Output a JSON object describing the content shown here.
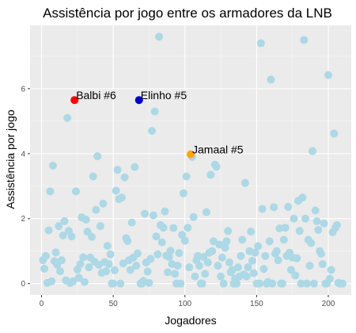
{
  "chart_data": {
    "type": "scatter",
    "title": "Assistência por jogo entre os armadores da LNB",
    "xlabel": "Jogadores",
    "ylabel": "Assistência por jogo",
    "xlim": [
      -8,
      216
    ],
    "ylim": [
      -0.35,
      7.95
    ],
    "x_ticks": [
      0,
      50,
      100,
      150,
      200
    ],
    "y_ticks": [
      0,
      2,
      4,
      6
    ],
    "grid": true,
    "legend": "none",
    "colors": {
      "panel": "#ebebeb",
      "grid_major": "#ffffff",
      "point": "#add8e6",
      "highlight_red": "#ff0000",
      "highlight_blue": "#0000cd",
      "highlight_orange": "#ffa500"
    },
    "highlights": [
      {
        "label": "Balbi #6",
        "x": 23,
        "y": 5.65,
        "color": "#ff0000"
      },
      {
        "label": "Elinho #5",
        "x": 68,
        "y": 5.65,
        "color": "#0000cd"
      },
      {
        "label": "Jamaal #5",
        "x": 104,
        "y": 3.98,
        "color": "#ffa500"
      }
    ],
    "points": [
      [
        1,
        0.72
      ],
      [
        2,
        0.46
      ],
      [
        3,
        0.85
      ],
      [
        4,
        0.02
      ],
      [
        5,
        1.64
      ],
      [
        6,
        2.84
      ],
      [
        7,
        0.07
      ],
      [
        8,
        3.63
      ],
      [
        9,
        0.69
      ],
      [
        10,
        0.96
      ],
      [
        11,
        0.58
      ],
      [
        12,
        1.77
      ],
      [
        13,
        0.38
      ],
      [
        14,
        0.72
      ],
      [
        15,
        1.48
      ],
      [
        16,
        1.92
      ],
      [
        17,
        0.1
      ],
      [
        18,
        5.1
      ],
      [
        19,
        1.62
      ],
      [
        20,
        0.02
      ],
      [
        21,
        1.45
      ],
      [
        22,
        0.07
      ],
      [
        24,
        2.84
      ],
      [
        25,
        0.43
      ],
      [
        26,
        0.18
      ],
      [
        27,
        0.6
      ],
      [
        28,
        2.04
      ],
      [
        29,
        0.81
      ],
      [
        30,
        0.05
      ],
      [
        31,
        1.97
      ],
      [
        32,
        1.6
      ],
      [
        33,
        0.5
      ],
      [
        34,
        0.8
      ],
      [
        35,
        1.44
      ],
      [
        36,
        3.3
      ],
      [
        37,
        0.67
      ],
      [
        38,
        2.27
      ],
      [
        39,
        3.92
      ],
      [
        40,
        0.58
      ],
      [
        41,
        1.77
      ],
      [
        42,
        0.33
      ],
      [
        43,
        2.46
      ],
      [
        44,
        0.66
      ],
      [
        45,
        0.38
      ],
      [
        46,
        1.16
      ],
      [
        47,
        0.6
      ],
      [
        48,
        0.9
      ],
      [
        49,
        0.0
      ],
      [
        50,
        0.0
      ],
      [
        51,
        0.41
      ],
      [
        52,
        2.86
      ],
      [
        53,
        3.5
      ],
      [
        54,
        2.6
      ],
      [
        55,
        0.0
      ],
      [
        56,
        2.65
      ],
      [
        57,
        0.62
      ],
      [
        58,
        3.27
      ],
      [
        59,
        1.4
      ],
      [
        60,
        1.31
      ],
      [
        61,
        0.72
      ],
      [
        62,
        0.42
      ],
      [
        63,
        1.88
      ],
      [
        64,
        0.8
      ],
      [
        65,
        3.59
      ],
      [
        66,
        0.55
      ],
      [
        67,
        0.93
      ],
      [
        69,
        0.0
      ],
      [
        70,
        0.0
      ],
      [
        71,
        0.08
      ],
      [
        72,
        2.15
      ],
      [
        73,
        0.65
      ],
      [
        74,
        0.37
      ],
      [
        75,
        0.02
      ],
      [
        76,
        0.76
      ],
      [
        77,
        4.7
      ],
      [
        78,
        2.1
      ],
      [
        79,
        5.3
      ],
      [
        80,
        1.45
      ],
      [
        81,
        0.9
      ],
      [
        82,
        7.6
      ],
      [
        83,
        1.8
      ],
      [
        84,
        1.27
      ],
      [
        85,
        1.72
      ],
      [
        86,
        2.22
      ],
      [
        87,
        0.86
      ],
      [
        88,
        0.35
      ],
      [
        89,
        0.82
      ],
      [
        90,
        1.01
      ],
      [
        91,
        0.6
      ],
      [
        92,
        1.71
      ],
      [
        93,
        0.3
      ],
      [
        94,
        0.0
      ],
      [
        95,
        0.55
      ],
      [
        96,
        0.94
      ],
      [
        97,
        0.0
      ],
      [
        98,
        1.5
      ],
      [
        99,
        2.78
      ],
      [
        100,
        1.32
      ],
      [
        101,
        3.3
      ],
      [
        102,
        1.72
      ],
      [
        103,
        0.5
      ],
      [
        105,
        3.9
      ],
      [
        106,
        2.05
      ],
      [
        107,
        0.22
      ],
      [
        108,
        0.72
      ],
      [
        109,
        0.85
      ],
      [
        110,
        0.55
      ],
      [
        111,
        0.0
      ],
      [
        112,
        0.0
      ],
      [
        113,
        0.82
      ],
      [
        114,
        0.3
      ],
      [
        115,
        2.2
      ],
      [
        116,
        0.65
      ],
      [
        117,
        0.95
      ],
      [
        118,
        3.35
      ],
      [
        119,
        1.0
      ],
      [
        120,
        1.3
      ],
      [
        121,
        3.66
      ],
      [
        122,
        3.6
      ],
      [
        123,
        0.55
      ],
      [
        124,
        1.2
      ],
      [
        125,
        0.22
      ],
      [
        126,
        0.8
      ],
      [
        127,
        0.0
      ],
      [
        128,
        1.1
      ],
      [
        129,
        1.3
      ],
      [
        130,
        1.62
      ],
      [
        131,
        0.65
      ],
      [
        132,
        0.35
      ],
      [
        133,
        0.42
      ],
      [
        134,
        0.0
      ],
      [
        135,
        0.15
      ],
      [
        136,
        0.0
      ],
      [
        137,
        0.5
      ],
      [
        138,
        0.22
      ],
      [
        139,
        0.85
      ],
      [
        140,
        1.35
      ],
      [
        141,
        0.28
      ],
      [
        142,
        3.1
      ],
      [
        143,
        0.22
      ],
      [
        144,
        0.5
      ],
      [
        145,
        1.0
      ],
      [
        146,
        1.6
      ],
      [
        147,
        0.7
      ],
      [
        148,
        0.32
      ],
      [
        149,
        0.95
      ],
      [
        150,
        0.0
      ],
      [
        151,
        1.15
      ],
      [
        152,
        0.0
      ],
      [
        153,
        7.4
      ],
      [
        154,
        2.3
      ],
      [
        155,
        0.45
      ],
      [
        156,
        0.85
      ],
      [
        157,
        0.0
      ],
      [
        158,
        0.05
      ],
      [
        159,
        1.3
      ],
      [
        160,
        6.28
      ],
      [
        161,
        0.0
      ],
      [
        162,
        2.35
      ],
      [
        163,
        0.92
      ],
      [
        164,
        1.0
      ],
      [
        165,
        0.72
      ],
      [
        166,
        1.7
      ],
      [
        167,
        0.0
      ],
      [
        168,
        0.0
      ],
      [
        169,
        1.35
      ],
      [
        170,
        1.72
      ],
      [
        171,
        0.85
      ],
      [
        172,
        2.36
      ],
      [
        173,
        0.95
      ],
      [
        174,
        0.42
      ],
      [
        175,
        0.8
      ],
      [
        176,
        2.0
      ],
      [
        177,
        0.25
      ],
      [
        178,
        0.78
      ],
      [
        179,
        2.55
      ],
      [
        180,
        1.62
      ],
      [
        181,
        0.0
      ],
      [
        182,
        2.65
      ],
      [
        183,
        7.5
      ],
      [
        184,
        2.0
      ],
      [
        185,
        0.0
      ],
      [
        186,
        1.35
      ],
      [
        187,
        0.55
      ],
      [
        188,
        1.25
      ],
      [
        189,
        4.08
      ],
      [
        190,
        0.0
      ],
      [
        191,
        2.25
      ],
      [
        192,
        1.92
      ],
      [
        193,
        1.65
      ],
      [
        194,
        1.0
      ],
      [
        195,
        0.92
      ],
      [
        196,
        0.6
      ],
      [
        197,
        1.85
      ],
      [
        198,
        0.0
      ],
      [
        199,
        0.0
      ],
      [
        200,
        6.42
      ],
      [
        201,
        0.15
      ],
      [
        202,
        0.42
      ],
      [
        203,
        1.58
      ],
      [
        204,
        4.62
      ],
      [
        205,
        1.72
      ],
      [
        206,
        1.8
      ],
      [
        207,
        0.02
      ],
      [
        208,
        0.0
      ],
      [
        209,
        0.0
      ],
      [
        210,
        0.0
      ]
    ]
  }
}
